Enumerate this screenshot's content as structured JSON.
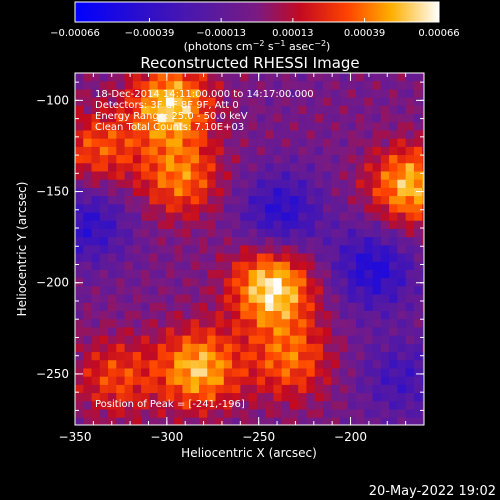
{
  "chart_data": {
    "type": "heatmap",
    "title": "Reconstructed RHESSI Image",
    "xlabel": "Heliocentric X (arcsec)",
    "ylabel": "Heliocentric Y (arcsec)",
    "xlim": [
      -350,
      -160
    ],
    "ylim": [
      -278,
      -85
    ],
    "x_ticks": [
      "−350",
      "−300",
      "−250",
      "−200"
    ],
    "x_tick_values": [
      -350,
      -300,
      -250,
      -200
    ],
    "y_ticks": [
      "−100",
      "−150",
      "−200",
      "−250"
    ],
    "y_tick_values": [
      -100,
      -150,
      -200,
      -250
    ],
    "colorbar": {
      "min": -0.00066,
      "max": 0.00066,
      "tick_values": [
        -0.00066,
        -0.00039,
        -0.00013,
        0.00013,
        0.00039,
        0.00066
      ],
      "tick_labels": [
        "−0.00066",
        "−0.00039",
        "−0.00013",
        "0.00013",
        "0.00039",
        "0.00066"
      ],
      "unit_label": "(photons cm",
      "unit_exp1": "−2",
      "unit_mid": " s",
      "unit_exp2": "−1",
      "unit_mid2": " asec",
      "unit_exp3": "−2",
      "unit_end": ")"
    },
    "annotations": [
      "18-Dec-2014 14:11:00.000 to 14:17:00.000",
      "Detectors: 3F 6F 8F 9F, Att 0",
      "Energy Range: 25.0 - 50.0 keV",
      "Clean    Total Counts: 7.10E+03"
    ],
    "peak_label": "Position of Peak = [-241,-196]",
    "peak": [
      -241,
      -196
    ],
    "bright_regions": [
      {
        "x": -300,
        "y": -100,
        "level": 0.9
      },
      {
        "x": -295,
        "y": -140,
        "level": 0.65
      },
      {
        "x": -245,
        "y": -200,
        "level": 1.0
      },
      {
        "x": -170,
        "y": -145,
        "level": 0.85
      },
      {
        "x": -285,
        "y": -245,
        "level": 0.85
      },
      {
        "x": -235,
        "y": -240,
        "level": 0.6
      },
      {
        "x": -340,
        "y": -125,
        "level": 0.55
      },
      {
        "x": -330,
        "y": -250,
        "level": 0.5
      }
    ],
    "dim_regions": [
      {
        "x": -240,
        "y": -160,
        "level": -0.6
      },
      {
        "x": -190,
        "y": -190,
        "level": -0.65
      },
      {
        "x": -345,
        "y": -165,
        "level": -0.55
      },
      {
        "x": -175,
        "y": -250,
        "level": -0.4
      }
    ]
  },
  "footer": {
    "timestamp": "20-May-2022 19:02"
  }
}
